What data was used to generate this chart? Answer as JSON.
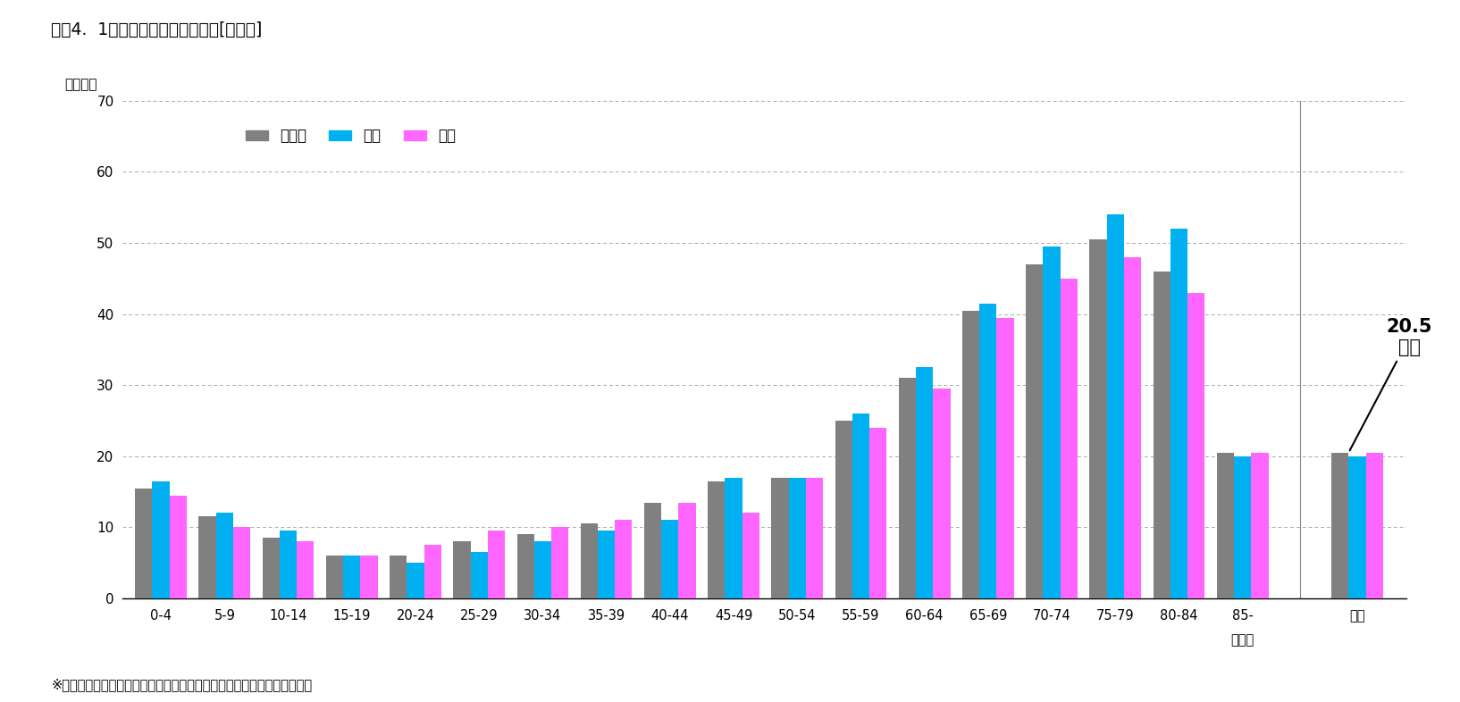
{
  "title": "図表4.  1人当たり入院外医療費　[１年間]",
  "ylabel": "（万円）",
  "footnote": "※「国民医療費の概况（平成２７年度）」（厚生労働省）より、筆者作成",
  "annotation_text": "20.5\n万円",
  "age_categories": [
    "0-4",
    "5-9",
    "10-14",
    "15-19",
    "20-24",
    "25-29",
    "30-34",
    "35-39",
    "40-44",
    "45-49",
    "50-54",
    "55-59",
    "60-64",
    "65-69",
    "70-74",
    "75-79",
    "80-84",
    "85-"
  ],
  "total_label": "総計",
  "legend_labels": [
    "男女計",
    "男性",
    "女性"
  ],
  "colors": [
    "#808080",
    "#00b0f0",
    "#ff66ff"
  ],
  "age_total": [
    15.5,
    11.5,
    8.5,
    6.0,
    6.0,
    8.0,
    9.0,
    10.5,
    13.5,
    16.5,
    17.0,
    25.0,
    31.0,
    40.5,
    47.0,
    50.5,
    46.0,
    20.5
  ],
  "age_male": [
    16.5,
    12.0,
    9.5,
    6.0,
    5.0,
    6.5,
    8.0,
    9.5,
    11.0,
    17.0,
    17.0,
    26.0,
    32.5,
    41.5,
    49.5,
    54.0,
    52.0,
    20.0
  ],
  "age_female": [
    14.5,
    10.0,
    8.0,
    6.0,
    7.5,
    9.5,
    10.0,
    11.0,
    13.5,
    12.0,
    17.0,
    24.0,
    29.5,
    39.5,
    45.0,
    48.0,
    43.0,
    20.5
  ],
  "sogo_total": 20.5,
  "sogo_male": 20.0,
  "sogo_female": 20.5,
  "ylim": [
    0,
    70
  ],
  "yticks": [
    0,
    10,
    20,
    30,
    40,
    50,
    60,
    70
  ],
  "bg_color": "#ffffff",
  "grid_color": "#aaaaaa",
  "bar_width": 0.27
}
